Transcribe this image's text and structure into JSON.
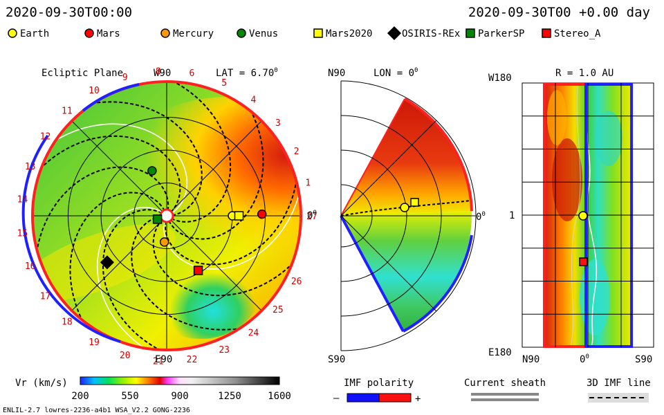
{
  "header": {
    "left_timestamp": "2020-09-30T00:00",
    "right_timestamp": "2020-09-30T00 +0.00 day"
  },
  "legend": [
    {
      "label": "Earth",
      "color": "#ffff00",
      "shape": "circle"
    },
    {
      "label": "Mars",
      "color": "#ff0000",
      "shape": "circle"
    },
    {
      "label": "Mercury",
      "color": "#ff9900",
      "shape": "circle"
    },
    {
      "label": "Venus",
      "color": "#008800",
      "shape": "circle"
    },
    {
      "label": "Mars2020",
      "color": "#ffff00",
      "shape": "square"
    },
    {
      "label": "OSIRIS-REx",
      "color": "#000000",
      "shape": "diamond"
    },
    {
      "label": "ParkerSP",
      "color": "#008800",
      "shape": "square"
    },
    {
      "label": "Stereo_A",
      "color": "#ff0000",
      "shape": "square"
    }
  ],
  "chart_data": [
    {
      "type": "polar-map",
      "title": "Ecliptic Plane",
      "lat_label": "LAT = 6.70",
      "lat_degree_mark": "0",
      "top_label": "W90",
      "bottom_label": "E90",
      "right_label": "0",
      "right_label_sup": "0",
      "carrington_labels": [
        "27",
        "1",
        "2",
        "3",
        "4",
        "5",
        "6",
        "8",
        "9",
        "10",
        "11",
        "12",
        "13",
        "14",
        "15",
        "16",
        "17",
        "18",
        "19",
        "20",
        "21",
        "22",
        "23",
        "24",
        "25",
        "26"
      ],
      "bodies": [
        {
          "name": "Earth",
          "r_au": 1.0,
          "angle_deg": 0
        },
        {
          "name": "Mars",
          "r_au": 1.45,
          "angle_deg": 1
        },
        {
          "name": "Mercury",
          "r_au": 0.4,
          "angle_deg": 265
        },
        {
          "name": "Venus",
          "r_au": 0.72,
          "angle_deg": 108
        },
        {
          "name": "Mars2020",
          "r_au": 1.1,
          "angle_deg": 0
        },
        {
          "name": "OSIRIS-REx",
          "r_au": 1.15,
          "angle_deg": 218
        },
        {
          "name": "ParkerSP",
          "r_au": 0.15,
          "angle_deg": 200
        },
        {
          "name": "Stereo_A",
          "r_au": 0.96,
          "angle_deg": 300
        }
      ]
    },
    {
      "type": "meridional-map",
      "title": "LON = 0",
      "title_degree_mark": "0",
      "top_label": "N90",
      "bottom_label": "S90",
      "right_label": "0",
      "right_label_sup": "0"
    },
    {
      "type": "heatmap",
      "title": "R = 1.0 AU",
      "top_label": "W180",
      "bottom_label": "E180",
      "mid_label": "1",
      "x_labels": [
        "N90",
        "0",
        "S90"
      ],
      "x_label_sup": "0"
    }
  ],
  "colorbar": {
    "label": "Vr (km/s)",
    "ticks": [
      "200",
      "550",
      "900",
      "1250",
      "1600"
    ],
    "range": [
      200,
      1600
    ]
  },
  "imf_polarity": {
    "label": "IMF polarity",
    "minus": "–",
    "plus": "+"
  },
  "current_sheath": {
    "label": "Current sheath"
  },
  "imf_line": {
    "label": "3D IMF line"
  },
  "footer": {
    "left": "ENLIL-2.7 lowres-2236-a4b1 WSA_V2.2 GONG-2236"
  }
}
